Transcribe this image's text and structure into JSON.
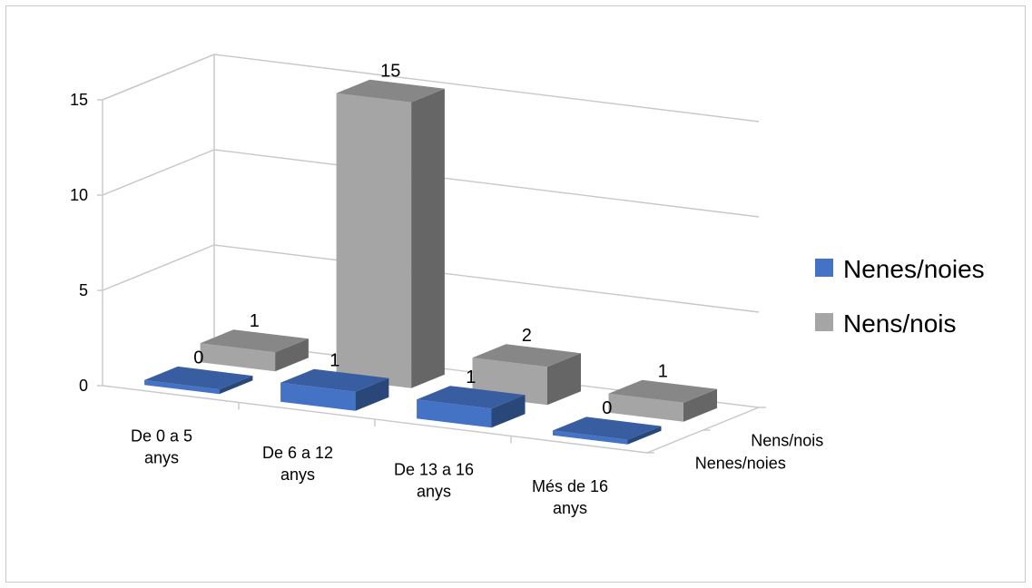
{
  "chart_data": {
    "type": "bar",
    "variant": "3d-column",
    "categories": [
      "De 0 a 5 anys",
      "De 6 a 12 anys",
      "De 13 a 16 anys",
      "Més de 16 anys"
    ],
    "category_lines": [
      [
        "De 0 a 5",
        "anys"
      ],
      [
        "De 6 a 12",
        "anys"
      ],
      [
        "De 13 a 16",
        "anys"
      ],
      [
        "Més de 16",
        "anys"
      ]
    ],
    "series": [
      {
        "name": "Nenes/noies",
        "values": [
          0,
          1,
          1,
          0
        ],
        "color": "#4472c4"
      },
      {
        "name": "Nens/nois",
        "values": [
          1,
          15,
          2,
          1
        ],
        "color": "#a5a5a5"
      }
    ],
    "depth_labels": [
      "Nens/nois",
      "Nenes/noies"
    ],
    "y_ticks": [
      "0",
      "5",
      "10",
      "15"
    ],
    "ylim": [
      0,
      15
    ],
    "grid": true,
    "legend": "right",
    "data_labels": true
  }
}
